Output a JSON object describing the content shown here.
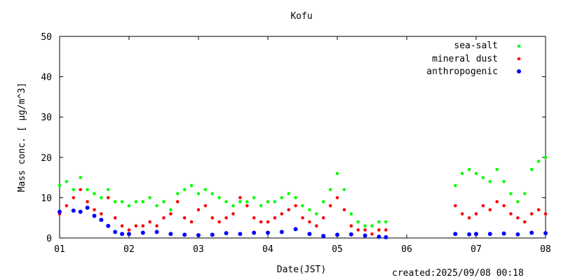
{
  "footer": {
    "created": "created:2025/09/08 00:18"
  },
  "chart_data": {
    "type": "scatter",
    "title": "Kofu",
    "xlabel": "Date(JST)",
    "ylabel": "Mass conc. [ μg/m^3]",
    "xlim": [
      1,
      8
    ],
    "ylim": [
      0,
      50
    ],
    "x_ticks": [
      1,
      2,
      3,
      4,
      5,
      6,
      7,
      8
    ],
    "x_tick_labels": [
      "01",
      "02",
      "03",
      "04",
      "05",
      "06",
      "07",
      "08"
    ],
    "y_ticks": [
      0,
      10,
      20,
      30,
      40,
      50
    ],
    "y_tick_labels": [
      "0",
      "10",
      "20",
      "30",
      "40",
      "50"
    ],
    "legend_position": "top-right",
    "series": [
      {
        "name": "sea-salt",
        "color": "#00ff00",
        "x": [
          1.0,
          1.1,
          1.2,
          1.3,
          1.4,
          1.5,
          1.6,
          1.7,
          1.8,
          1.9,
          2.0,
          2.1,
          2.2,
          2.3,
          2.4,
          2.5,
          2.6,
          2.7,
          2.8,
          2.9,
          3.0,
          3.1,
          3.2,
          3.3,
          3.4,
          3.5,
          3.6,
          3.7,
          3.8,
          3.9,
          4.0,
          4.1,
          4.2,
          4.3,
          4.4,
          4.5,
          4.6,
          4.7,
          4.8,
          4.9,
          5.0,
          5.1,
          5.2,
          5.3,
          5.4,
          5.5,
          5.6,
          5.7,
          6.7,
          6.8,
          6.9,
          7.0,
          7.1,
          7.2,
          7.3,
          7.4,
          7.5,
          7.6,
          7.7,
          7.8,
          7.9,
          8.0
        ],
        "values": [
          13,
          14,
          12,
          15,
          12,
          11,
          10,
          12,
          9,
          9,
          8,
          9,
          9,
          10,
          8,
          9,
          7,
          11,
          12,
          13,
          11,
          12,
          11,
          10,
          9,
          8,
          9,
          9,
          10,
          8,
          9,
          9,
          10,
          11,
          10,
          8,
          7,
          6,
          9,
          12,
          16,
          12,
          6,
          4,
          3,
          3,
          4,
          4,
          13,
          16,
          17,
          16,
          15,
          14,
          17,
          14,
          11,
          9,
          11,
          17,
          19,
          20
        ],
        "marker_size": 2.3
      },
      {
        "name": "mineral dust",
        "color": "#ff0000",
        "x": [
          1.0,
          1.1,
          1.2,
          1.3,
          1.4,
          1.5,
          1.6,
          1.7,
          1.8,
          1.9,
          2.0,
          2.1,
          2.2,
          2.3,
          2.4,
          2.5,
          2.6,
          2.7,
          2.8,
          2.9,
          3.0,
          3.1,
          3.2,
          3.3,
          3.4,
          3.5,
          3.6,
          3.7,
          3.8,
          3.9,
          4.0,
          4.1,
          4.2,
          4.3,
          4.4,
          4.5,
          4.6,
          4.7,
          4.8,
          4.9,
          5.0,
          5.1,
          5.2,
          5.3,
          5.4,
          5.5,
          5.6,
          5.7,
          6.7,
          6.8,
          6.9,
          7.0,
          7.1,
          7.2,
          7.3,
          7.4,
          7.5,
          7.6,
          7.7,
          7.8,
          7.9,
          8.0
        ],
        "values": [
          6,
          8,
          10,
          12,
          9,
          7,
          6,
          10,
          5,
          3,
          2,
          3,
          3,
          4,
          3,
          5,
          6,
          9,
          5,
          4,
          7,
          8,
          5,
          4,
          5,
          6,
          10,
          8,
          5,
          4,
          4,
          5,
          6,
          7,
          8,
          5,
          4,
          3,
          5,
          8,
          10,
          7,
          3,
          2,
          2,
          1,
          2,
          2,
          8,
          6,
          5,
          6,
          8,
          7,
          9,
          8,
          6,
          5,
          4,
          6,
          7,
          6
        ],
        "marker_size": 2.3
      },
      {
        "name": "anthropogenic",
        "color": "#0000ff",
        "x": [
          1.0,
          1.2,
          1.3,
          1.4,
          1.5,
          1.6,
          1.7,
          1.8,
          1.9,
          2.0,
          2.2,
          2.4,
          2.6,
          2.8,
          3.0,
          3.2,
          3.4,
          3.6,
          3.8,
          4.0,
          4.2,
          4.4,
          4.6,
          4.8,
          5.0,
          5.2,
          5.4,
          5.6,
          5.7,
          6.7,
          6.9,
          7.0,
          7.2,
          7.4,
          7.6,
          7.8,
          8.0
        ],
        "values": [
          6.5,
          6.8,
          6.5,
          7.5,
          5.5,
          4.5,
          3.0,
          1.5,
          1.0,
          1.0,
          1.3,
          1.5,
          1.0,
          0.8,
          0.7,
          0.8,
          1.2,
          1.0,
          1.3,
          1.3,
          1.5,
          2.2,
          1.0,
          0.5,
          0.8,
          0.9,
          0.6,
          0.3,
          0.2,
          1.0,
          0.9,
          1.0,
          1.0,
          1.1,
          0.9,
          1.3,
          1.2
        ],
        "marker_size": 3
      }
    ]
  }
}
